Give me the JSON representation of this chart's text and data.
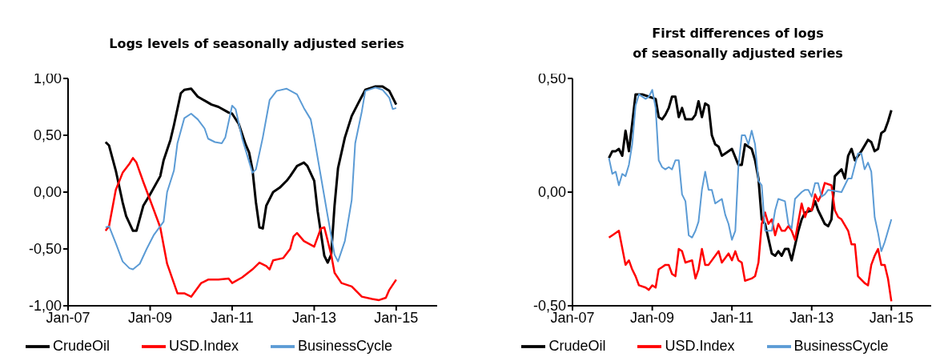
{
  "chart_data": [
    {
      "type": "line",
      "title": "Logs levels of seasonally adjusted series",
      "legend": "bottom",
      "xlim": [
        "2007-01",
        "2016-01"
      ],
      "xticks": [
        {
          "value": "2007-01",
          "label": "Jan-07"
        },
        {
          "value": "2009-01",
          "label": "Jan-09"
        },
        {
          "value": "2011-01",
          "label": "Jan-11"
        },
        {
          "value": "2013-01",
          "label": "Jan-13"
        },
        {
          "value": "2015-01",
          "label": "Jan-15"
        }
      ],
      "ylim": [
        -1,
        1
      ],
      "yticks": [
        {
          "value": -1,
          "label": "-1,00"
        },
        {
          "value": -0.5,
          "label": "-0,50"
        },
        {
          "value": 0,
          "label": "0,00"
        },
        {
          "value": 0.5,
          "label": "0,50"
        },
        {
          "value": 1,
          "label": "1,00"
        }
      ],
      "series": [
        {
          "name": "CrudeOil",
          "color": "#000000",
          "x": [
            "2007-12",
            "2008-01",
            "2008-03",
            "2008-05",
            "2008-06",
            "2008-08",
            "2008-09",
            "2008-11",
            "2009-01",
            "2009-04",
            "2009-05",
            "2009-07",
            "2009-08",
            "2009-10",
            "2009-11",
            "2010-01",
            "2010-03",
            "2010-07",
            "2010-09",
            "2010-12",
            "2011-01",
            "2011-03",
            "2011-05",
            "2011-06",
            "2011-07",
            "2011-08",
            "2011-09",
            "2011-10",
            "2011-11",
            "2012-01",
            "2012-03",
            "2012-05",
            "2012-06",
            "2012-08",
            "2012-10",
            "2012-11",
            "2013-01",
            "2013-02",
            "2013-04",
            "2013-05",
            "2013-06",
            "2013-07",
            "2013-08",
            "2013-10",
            "2013-12",
            "2014-02",
            "2014-04",
            "2014-07",
            "2014-09",
            "2014-11",
            "2015-01"
          ],
          "values": [
            0.44,
            0.41,
            0.19,
            -0.09,
            -0.21,
            -0.34,
            -0.34,
            -0.12,
            -0.02,
            0.14,
            0.28,
            0.46,
            0.59,
            0.87,
            0.9,
            0.91,
            0.84,
            0.77,
            0.75,
            0.7,
            0.69,
            0.6,
            0.42,
            0.35,
            0.2,
            -0.09,
            -0.31,
            -0.32,
            -0.12,
            0,
            0.04,
            0.1,
            0.14,
            0.23,
            0.26,
            0.23,
            0.1,
            -0.17,
            -0.56,
            -0.62,
            -0.55,
            -0.12,
            0.21,
            0.48,
            0.67,
            0.79,
            0.9,
            0.93,
            0.93,
            0.89,
            0.77
          ]
        },
        {
          "name": "USD.Index",
          "color": "#ff0000",
          "x": [
            "2007-12",
            "2008-01",
            "2008-03",
            "2008-05",
            "2008-07",
            "2008-08",
            "2008-09",
            "2008-11",
            "2009-01",
            "2009-04",
            "2009-06",
            "2009-09",
            "2009-11",
            "2010-01",
            "2010-04",
            "2010-06",
            "2010-09",
            "2010-12",
            "2011-01",
            "2011-04",
            "2011-07",
            "2011-09",
            "2011-11",
            "2011-12",
            "2012-01",
            "2012-04",
            "2012-06",
            "2012-07",
            "2012-08",
            "2012-10",
            "2013-01",
            "2013-03",
            "2013-04",
            "2013-06",
            "2013-07",
            "2013-09",
            "2013-12",
            "2014-03",
            "2014-06",
            "2014-08",
            "2014-10",
            "2014-11",
            "2015-01"
          ],
          "values": [
            -0.34,
            -0.3,
            0.02,
            0.17,
            0.25,
            0.3,
            0.26,
            0.09,
            -0.07,
            -0.31,
            -0.63,
            -0.89,
            -0.89,
            -0.92,
            -0.8,
            -0.77,
            -0.77,
            -0.76,
            -0.8,
            -0.75,
            -0.68,
            -0.62,
            -0.65,
            -0.68,
            -0.6,
            -0.58,
            -0.5,
            -0.39,
            -0.36,
            -0.43,
            -0.48,
            -0.32,
            -0.31,
            -0.55,
            -0.71,
            -0.8,
            -0.83,
            -0.92,
            -0.94,
            -0.95,
            -0.93,
            -0.86,
            -0.77
          ]
        },
        {
          "name": "BusinessCycle",
          "color": "#5b9bd5",
          "x": [
            "2007-12",
            "2008-01",
            "2008-03",
            "2008-05",
            "2008-07",
            "2008-08",
            "2008-10",
            "2008-12",
            "2009-02",
            "2009-05",
            "2009-06",
            "2009-08",
            "2009-09",
            "2009-11",
            "2010-01",
            "2010-03",
            "2010-05",
            "2010-06",
            "2010-08",
            "2010-10",
            "2010-11",
            "2011-01",
            "2011-02",
            "2011-04",
            "2011-07",
            "2011-08",
            "2011-10",
            "2011-12",
            "2012-02",
            "2012-05",
            "2012-08",
            "2012-10",
            "2012-12",
            "2013-01",
            "2013-03",
            "2013-05",
            "2013-07",
            "2013-08",
            "2013-10",
            "2013-12",
            "2014-01",
            "2014-03",
            "2014-04",
            "2014-07",
            "2014-09",
            "2014-11",
            "2014-12",
            "2015-01"
          ],
          "values": [
            -0.31,
            -0.3,
            -0.45,
            -0.61,
            -0.67,
            -0.68,
            -0.63,
            -0.5,
            -0.38,
            -0.26,
            0,
            0.19,
            0.43,
            0.65,
            0.69,
            0.64,
            0.56,
            0.47,
            0.44,
            0.43,
            0.48,
            0.76,
            0.73,
            0.47,
            0.17,
            0.2,
            0.48,
            0.81,
            0.89,
            0.91,
            0.86,
            0.74,
            0.64,
            0.48,
            0.14,
            -0.21,
            -0.55,
            -0.61,
            -0.43,
            -0.07,
            0.43,
            0.71,
            0.89,
            0.92,
            0.9,
            0.83,
            0.73,
            0.74
          ]
        }
      ]
    },
    {
      "type": "line",
      "title": "First differences of logs\nof seasonally adjusted series",
      "legend": "bottom",
      "xlim": [
        "2007-01",
        "2016-01"
      ],
      "xticks": [
        {
          "value": "2007-01",
          "label": "Jan-07"
        },
        {
          "value": "2009-01",
          "label": "Jan-09"
        },
        {
          "value": "2011-01",
          "label": "Jan-11"
        },
        {
          "value": "2013-01",
          "label": "Jan-13"
        },
        {
          "value": "2015-01",
          "label": "Jan-15"
        }
      ],
      "ylim": [
        -0.5,
        0.5
      ],
      "yticks": [
        {
          "value": -0.5,
          "label": "-0,50"
        },
        {
          "value": 0,
          "label": "0,00"
        },
        {
          "value": 0.5,
          "label": "0,50"
        }
      ],
      "series": [
        {
          "name": "CrudeOil",
          "color": "#000000",
          "x": [
            "2007-12",
            "2008-01",
            "2008-02",
            "2008-03",
            "2008-04",
            "2008-05",
            "2008-06",
            "2008-07",
            "2008-08",
            "2008-10",
            "2008-12",
            "2009-02",
            "2009-03",
            "2009-04",
            "2009-05",
            "2009-06",
            "2009-07",
            "2009-08",
            "2009-09",
            "2009-10",
            "2009-11",
            "2010-01",
            "2010-02",
            "2010-03",
            "2010-04",
            "2010-05",
            "2010-06",
            "2010-07",
            "2010-08",
            "2010-09",
            "2010-10",
            "2010-11",
            "2011-01",
            "2011-03",
            "2011-04",
            "2011-05",
            "2011-07",
            "2011-08",
            "2011-09",
            "2011-10",
            "2011-11",
            "2012-01",
            "2012-02",
            "2012-03",
            "2012-04",
            "2012-05",
            "2012-06",
            "2012-07",
            "2012-09",
            "2012-10",
            "2012-11",
            "2013-01",
            "2013-02",
            "2013-03",
            "2013-05",
            "2013-06",
            "2013-07",
            "2013-08",
            "2013-10",
            "2013-11",
            "2013-12",
            "2014-01",
            "2014-02",
            "2014-04",
            "2014-06",
            "2014-07",
            "2014-08",
            "2014-09",
            "2014-10",
            "2014-11",
            "2014-12",
            "2015-01"
          ],
          "values": [
            0.15,
            0.18,
            0.18,
            0.19,
            0.16,
            0.27,
            0.18,
            0.3,
            0.43,
            0.43,
            0.42,
            0.41,
            0.33,
            0.32,
            0.34,
            0.37,
            0.42,
            0.42,
            0.33,
            0.37,
            0.32,
            0.32,
            0.34,
            0.4,
            0.33,
            0.39,
            0.38,
            0.25,
            0.21,
            0.2,
            0.16,
            0.17,
            0.19,
            0.12,
            0.12,
            0.21,
            0.19,
            0.14,
            0.06,
            -0.12,
            -0.14,
            -0.27,
            -0.28,
            -0.26,
            -0.28,
            -0.25,
            -0.25,
            -0.3,
            -0.17,
            -0.12,
            -0.09,
            -0.08,
            -0.04,
            -0.08,
            -0.14,
            -0.15,
            -0.12,
            0.07,
            0.1,
            0.06,
            0.16,
            0.19,
            0.14,
            0.18,
            0.23,
            0.22,
            0.18,
            0.19,
            0.26,
            0.27,
            0.31,
            0.36
          ]
        },
        {
          "name": "USD.Index",
          "color": "#ff0000",
          "x": [
            "2007-12",
            "2008-01",
            "2008-03",
            "2008-05",
            "2008-06",
            "2008-07",
            "2008-08",
            "2008-09",
            "2008-11",
            "2008-12",
            "2009-01",
            "2009-02",
            "2009-03",
            "2009-04",
            "2009-05",
            "2009-06",
            "2009-07",
            "2009-08",
            "2009-09",
            "2009-10",
            "2009-11",
            "2010-01",
            "2010-02",
            "2010-03",
            "2010-04",
            "2010-05",
            "2010-06",
            "2010-09",
            "2010-10",
            "2010-12",
            "2011-01",
            "2011-02",
            "2011-03",
            "2011-04",
            "2011-05",
            "2011-07",
            "2011-08",
            "2011-09",
            "2011-10",
            "2011-11",
            "2011-12",
            "2012-01",
            "2012-02",
            "2012-03",
            "2012-04",
            "2012-05",
            "2012-06",
            "2012-07",
            "2012-08",
            "2012-10",
            "2012-11",
            "2012-12",
            "2013-01",
            "2013-02",
            "2013-03",
            "2013-04",
            "2013-05",
            "2013-07",
            "2013-08",
            "2013-09",
            "2013-10",
            "2013-12",
            "2014-01",
            "2014-02",
            "2014-03",
            "2014-05",
            "2014-06",
            "2014-07",
            "2014-08",
            "2014-09",
            "2014-10",
            "2014-11",
            "2014-12",
            "2015-01"
          ],
          "values": [
            -0.2,
            -0.19,
            -0.17,
            -0.32,
            -0.3,
            -0.34,
            -0.37,
            -0.41,
            -0.42,
            -0.43,
            -0.41,
            -0.42,
            -0.34,
            -0.33,
            -0.32,
            -0.32,
            -0.36,
            -0.37,
            -0.25,
            -0.26,
            -0.31,
            -0.3,
            -0.38,
            -0.34,
            -0.25,
            -0.32,
            -0.32,
            -0.26,
            -0.31,
            -0.27,
            -0.3,
            -0.26,
            -0.3,
            -0.31,
            -0.39,
            -0.38,
            -0.37,
            -0.31,
            -0.14,
            -0.09,
            -0.14,
            -0.12,
            -0.19,
            -0.14,
            -0.17,
            -0.17,
            -0.15,
            -0.17,
            -0.21,
            -0.05,
            -0.11,
            -0.07,
            -0.08,
            -0.01,
            -0.04,
            -0.01,
            0.04,
            0.03,
            -0.08,
            -0.11,
            -0.12,
            -0.17,
            -0.23,
            -0.23,
            -0.37,
            -0.4,
            -0.41,
            -0.32,
            -0.28,
            -0.25,
            -0.32,
            -0.32,
            -0.38,
            -0.48
          ]
        },
        {
          "name": "BusinessCycle",
          "color": "#5b9bd5",
          "x": [
            "2007-12",
            "2008-01",
            "2008-02",
            "2008-03",
            "2008-04",
            "2008-05",
            "2008-06",
            "2008-07",
            "2008-08",
            "2008-09",
            "2008-11",
            "2008-12",
            "2009-01",
            "2009-02",
            "2009-03",
            "2009-04",
            "2009-05",
            "2009-06",
            "2009-07",
            "2009-08",
            "2009-09",
            "2009-10",
            "2009-11",
            "2009-12",
            "2010-01",
            "2010-02",
            "2010-03",
            "2010-04",
            "2010-05",
            "2010-06",
            "2010-07",
            "2010-08",
            "2010-10",
            "2010-11",
            "2010-12",
            "2011-01",
            "2011-02",
            "2011-03",
            "2011-04",
            "2011-05",
            "2011-06",
            "2011-07",
            "2011-08",
            "2011-09",
            "2011-10",
            "2011-11",
            "2012-01",
            "2012-02",
            "2012-03",
            "2012-05",
            "2012-06",
            "2012-07",
            "2012-08",
            "2012-10",
            "2012-11",
            "2012-12",
            "2013-01",
            "2013-02",
            "2013-03",
            "2013-04",
            "2013-05",
            "2013-06",
            "2013-10",
            "2013-12",
            "2014-01",
            "2014-03",
            "2014-04",
            "2014-05",
            "2014-06",
            "2014-07",
            "2014-08",
            "2014-09",
            "2014-10",
            "2014-11",
            "2015-01"
          ],
          "values": [
            0.15,
            0.08,
            0.09,
            0.03,
            0.08,
            0.07,
            0.12,
            0.21,
            0.38,
            0.43,
            0.41,
            0.42,
            0.45,
            0.37,
            0.14,
            0.11,
            0.1,
            0.11,
            0.1,
            0.14,
            0.14,
            -0.01,
            -0.04,
            -0.19,
            -0.2,
            -0.17,
            -0.13,
            0.01,
            0.09,
            0.01,
            0.01,
            -0.05,
            -0.03,
            -0.1,
            -0.14,
            -0.21,
            -0.17,
            0.11,
            0.25,
            0.25,
            0.21,
            0.27,
            0.21,
            0.05,
            0.03,
            -0.17,
            -0.17,
            -0.08,
            -0.03,
            -0.04,
            -0.14,
            -0.16,
            -0.03,
            0,
            0.01,
            0.01,
            -0.02,
            0.04,
            0.04,
            -0.02,
            -0.01,
            0.01,
            0,
            0.06,
            0.06,
            0.17,
            0.17,
            0.1,
            0.13,
            0.09,
            -0.11,
            -0.18,
            -0.26,
            -0.22,
            -0.12
          ]
        }
      ]
    }
  ]
}
